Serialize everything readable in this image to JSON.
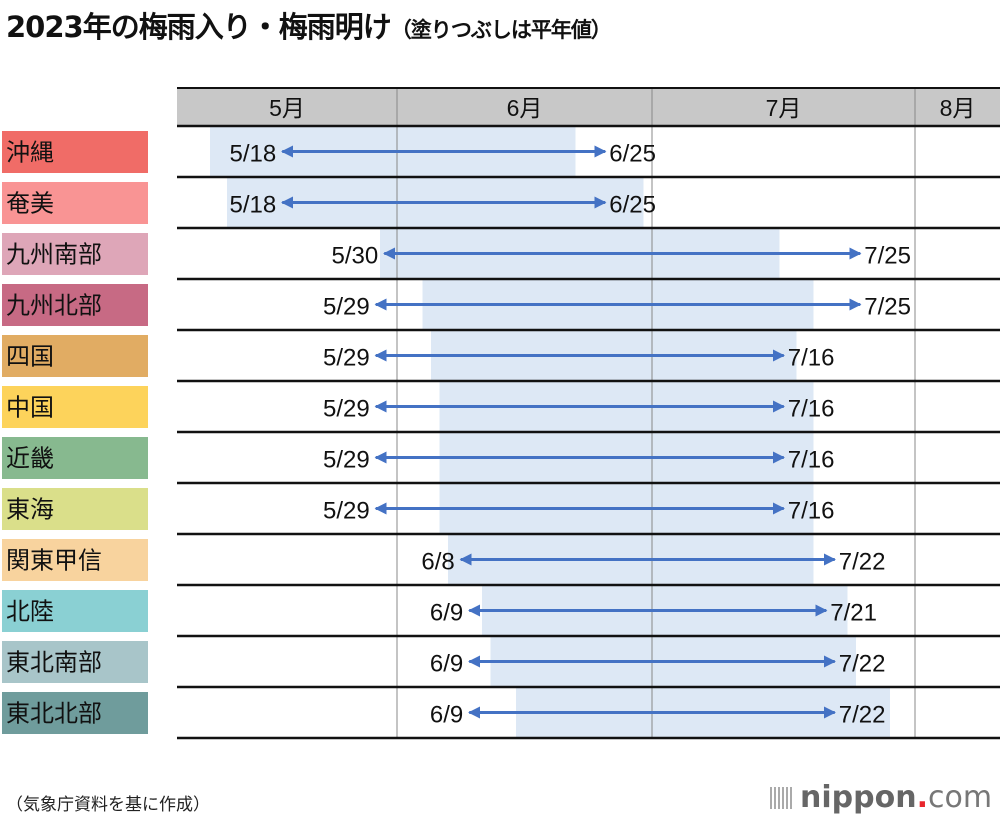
{
  "title": "2023年の梅雨入り・梅雨明け",
  "subtitle": "（塗りつぶしは平年値）",
  "source": "（気象庁資料を基に作成）",
  "logo": {
    "name": "nippon",
    "dot": ".",
    "suffix": "com"
  },
  "chart_data": {
    "type": "gantt",
    "year": 2023,
    "months": [
      "5月",
      "6月",
      "7月",
      "8月"
    ],
    "xrange": [
      "5/6",
      "8/3"
    ],
    "colors": {
      "arrow": "#4472c4",
      "normal_fill": "#dde8f5",
      "header": "#c8c8c8"
    },
    "rows": [
      {
        "region": "沖縄",
        "color": "#f06c67",
        "start": "5/18",
        "end": "6/25",
        "normal_start": "5/10",
        "normal_end": "6/21"
      },
      {
        "region": "奄美",
        "color": "#f99494",
        "start": "5/18",
        "end": "6/25",
        "normal_start": "5/12",
        "normal_end": "6/29"
      },
      {
        "region": "九州南部",
        "color": "#dea6b8",
        "start": "5/30",
        "end": "7/25",
        "normal_start": "5/30",
        "normal_end": "7/15"
      },
      {
        "region": "九州北部",
        "color": "#c76a84",
        "start": "5/29",
        "end": "7/25",
        "normal_start": "6/4",
        "normal_end": "7/19"
      },
      {
        "region": "四国",
        "color": "#e1ac63",
        "start": "5/29",
        "end": "7/16",
        "normal_start": "6/5",
        "normal_end": "7/17"
      },
      {
        "region": "中国",
        "color": "#fdd35b",
        "start": "5/29",
        "end": "7/16",
        "normal_start": "6/6",
        "normal_end": "7/19"
      },
      {
        "region": "近畿",
        "color": "#87b98f",
        "start": "5/29",
        "end": "7/16",
        "normal_start": "6/6",
        "normal_end": "7/19"
      },
      {
        "region": "東海",
        "color": "#dadf8a",
        "start": "5/29",
        "end": "7/16",
        "normal_start": "6/6",
        "normal_end": "7/19"
      },
      {
        "region": "関東甲信",
        "color": "#f8d39e",
        "start": "6/8",
        "end": "7/22",
        "normal_start": "6/7",
        "normal_end": "7/19"
      },
      {
        "region": "北陸",
        "color": "#8ad0d3",
        "start": "6/9",
        "end": "7/21",
        "normal_start": "6/11",
        "normal_end": "7/23"
      },
      {
        "region": "東北南部",
        "color": "#a8c5c9",
        "start": "6/9",
        "end": "7/22",
        "normal_start": "6/12",
        "normal_end": "7/24"
      },
      {
        "region": "東北北部",
        "color": "#6f9c9c",
        "start": "6/9",
        "end": "7/22",
        "normal_start": "6/15",
        "normal_end": "7/28"
      }
    ]
  }
}
